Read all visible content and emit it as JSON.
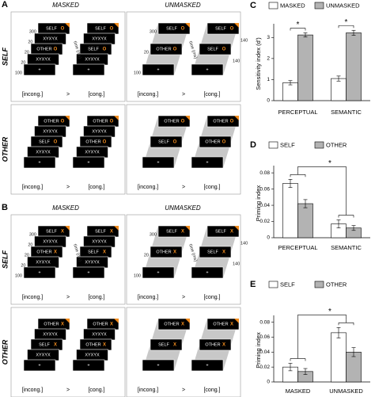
{
  "diagrams": {
    "columns": [
      "MASKED",
      "UNMASKED"
    ],
    "rows": [
      "SELF",
      "OTHER"
    ],
    "comparison": [
      "[incong.]",
      ">",
      "[cong.]"
    ],
    "time_axis": "time (ms)",
    "mask": "XYXYX",
    "fixation": "+",
    "masked_durations": [
      300,
      20,
      20,
      20,
      100
    ],
    "unmasked_durations": [
      300,
      20,
      100
    ],
    "unmasked_gaps": [
      140,
      140
    ],
    "panels": [
      {
        "letter": "A",
        "marker": "O"
      },
      {
        "letter": "B",
        "marker": "X"
      }
    ]
  },
  "chart_data": [
    {
      "type": "bar",
      "label": "C",
      "ylabel": "Sensitivity index (d')",
      "categories": [
        "PERCEPTUAL",
        "SEMANTIC"
      ],
      "series": [
        {
          "name": "MASKED",
          "color": "#ffffff",
          "values": [
            0.85,
            1.05
          ],
          "errors": [
            0.1,
            0.12
          ]
        },
        {
          "name": "UNMASKED",
          "color": "#b3b3b3",
          "values": [
            3.12,
            3.22
          ],
          "errors": [
            0.1,
            0.12
          ]
        }
      ],
      "ylim": [
        0,
        3.5
      ],
      "yticks": [
        0,
        1,
        2,
        3
      ],
      "annotations": [
        "*",
        "*"
      ]
    },
    {
      "type": "bar",
      "label": "D",
      "ylabel": "Priming index",
      "categories": [
        "PERCEPTUAL",
        "SEMANTIC"
      ],
      "series": [
        {
          "name": "SELF",
          "color": "#ffffff",
          "values": [
            0.067,
            0.017
          ],
          "errors": [
            0.005,
            0.005
          ]
        },
        {
          "name": "OTHER",
          "color": "#b3b3b3",
          "values": [
            0.042,
            0.012
          ],
          "errors": [
            0.005,
            0.003
          ]
        }
      ],
      "ylim": [
        0,
        0.085
      ],
      "yticks": [
        0,
        0.02,
        0.04,
        0.06,
        0.08
      ],
      "annotation": "*"
    },
    {
      "type": "bar",
      "label": "E",
      "ylabel": "Priming index",
      "categories": [
        "MASKED",
        "UNMASKED"
      ],
      "series": [
        {
          "name": "SELF",
          "color": "#ffffff",
          "values": [
            0.02,
            0.066
          ],
          "errors": [
            0.005,
            0.007
          ]
        },
        {
          "name": "OTHER",
          "color": "#b3b3b3",
          "values": [
            0.014,
            0.04
          ],
          "errors": [
            0.004,
            0.006
          ]
        }
      ],
      "ylim": [
        0,
        0.085
      ],
      "yticks": [
        0,
        0.02,
        0.04,
        0.06,
        0.08
      ],
      "annotation": "*"
    }
  ]
}
